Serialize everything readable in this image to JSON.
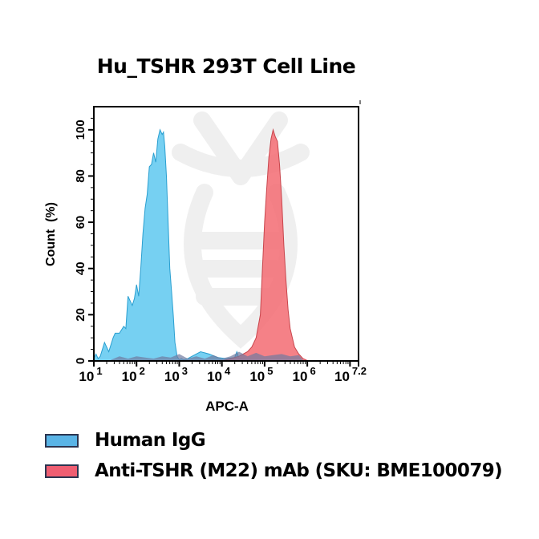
{
  "chart_data": {
    "type": "area",
    "title": "Hu_TSHR 293T Cell Line",
    "xlabel": "APC-A",
    "ylabel": "Count  (%)",
    "x_scale": "log10",
    "xlim_log10": [
      1,
      7.2
    ],
    "ylim": [
      0,
      110
    ],
    "x_tick_labels": [
      {
        "base": "10",
        "exp": "1",
        "pos": 1
      },
      {
        "base": "10",
        "exp": "2",
        "pos": 2
      },
      {
        "base": "10",
        "exp": "3",
        "pos": 3
      },
      {
        "base": "10",
        "exp": "4",
        "pos": 4
      },
      {
        "base": "10",
        "exp": "5",
        "pos": 5
      },
      {
        "base": "10",
        "exp": "6",
        "pos": 6
      },
      {
        "base": "10",
        "exp": "7.2",
        "pos": 7.2
      }
    ],
    "y_ticks": [
      0,
      20,
      40,
      60,
      80,
      100
    ],
    "grid": false,
    "legend_position": "bottom",
    "series": [
      {
        "name": "Human IgG",
        "color": "#5ec8f0",
        "edge_color": "#2a9fd0",
        "x_log10": [
          1.0,
          1.05,
          1.1,
          1.15,
          1.25,
          1.35,
          1.45,
          1.5,
          1.6,
          1.7,
          1.75,
          1.8,
          1.9,
          1.95,
          2.0,
          2.05,
          2.1,
          2.15,
          2.2,
          2.25,
          2.3,
          2.35,
          2.4,
          2.45,
          2.5,
          2.55,
          2.6,
          2.63,
          2.66,
          2.7,
          2.74,
          2.78,
          2.82,
          2.86,
          2.9,
          2.95,
          3.0,
          3.05,
          3.1,
          3.2,
          3.3,
          3.5,
          3.7,
          3.9,
          4.1,
          4.3,
          4.35,
          4.4,
          4.6,
          5.0,
          5.5,
          6.0,
          7.2
        ],
        "values": [
          1,
          3,
          1,
          2,
          8,
          4,
          10,
          12,
          12,
          15,
          14,
          28,
          24,
          27,
          33,
          28,
          40,
          55,
          66,
          72,
          84,
          85,
          90,
          86,
          96,
          100,
          98,
          99,
          93,
          80,
          60,
          40,
          30,
          20,
          8,
          2,
          0.5,
          1,
          0.5,
          1,
          2,
          4,
          3,
          1.5,
          1,
          1.5,
          4,
          1,
          0.5,
          0.2,
          0,
          0,
          0
        ]
      },
      {
        "name": "Anti-TSHR (M22) mAb (SKU: BME100079)",
        "color": "#f36b72",
        "edge_color": "#c8454c",
        "x_log10": [
          1.0,
          2.0,
          3.0,
          4.0,
          4.2,
          4.4,
          4.6,
          4.7,
          4.8,
          4.9,
          4.95,
          5.0,
          5.05,
          5.1,
          5.15,
          5.2,
          5.25,
          5.3,
          5.35,
          5.4,
          5.45,
          5.5,
          5.55,
          5.6,
          5.7,
          5.8,
          5.9,
          6.0,
          6.1,
          7.2
        ],
        "values": [
          0,
          0,
          0,
          0,
          1,
          2,
          4,
          6,
          10,
          20,
          40,
          60,
          75,
          88,
          96,
          100,
          97,
          95,
          85,
          70,
          50,
          35,
          22,
          14,
          6,
          3,
          1,
          0.2,
          0,
          0
        ]
      }
    ],
    "background_noise_overlay": {
      "color": "#6f7aa0",
      "note": "low dark-grey-blue trace (~1-4%) overlapping both histograms near baseline"
    }
  },
  "legend": {
    "items": [
      {
        "label": "Human IgG",
        "color": "#5ab4e6"
      },
      {
        "label": "Anti-TSHR (M22) mAb (SKU: BME100079)",
        "color": "#ef5e72"
      }
    ]
  }
}
